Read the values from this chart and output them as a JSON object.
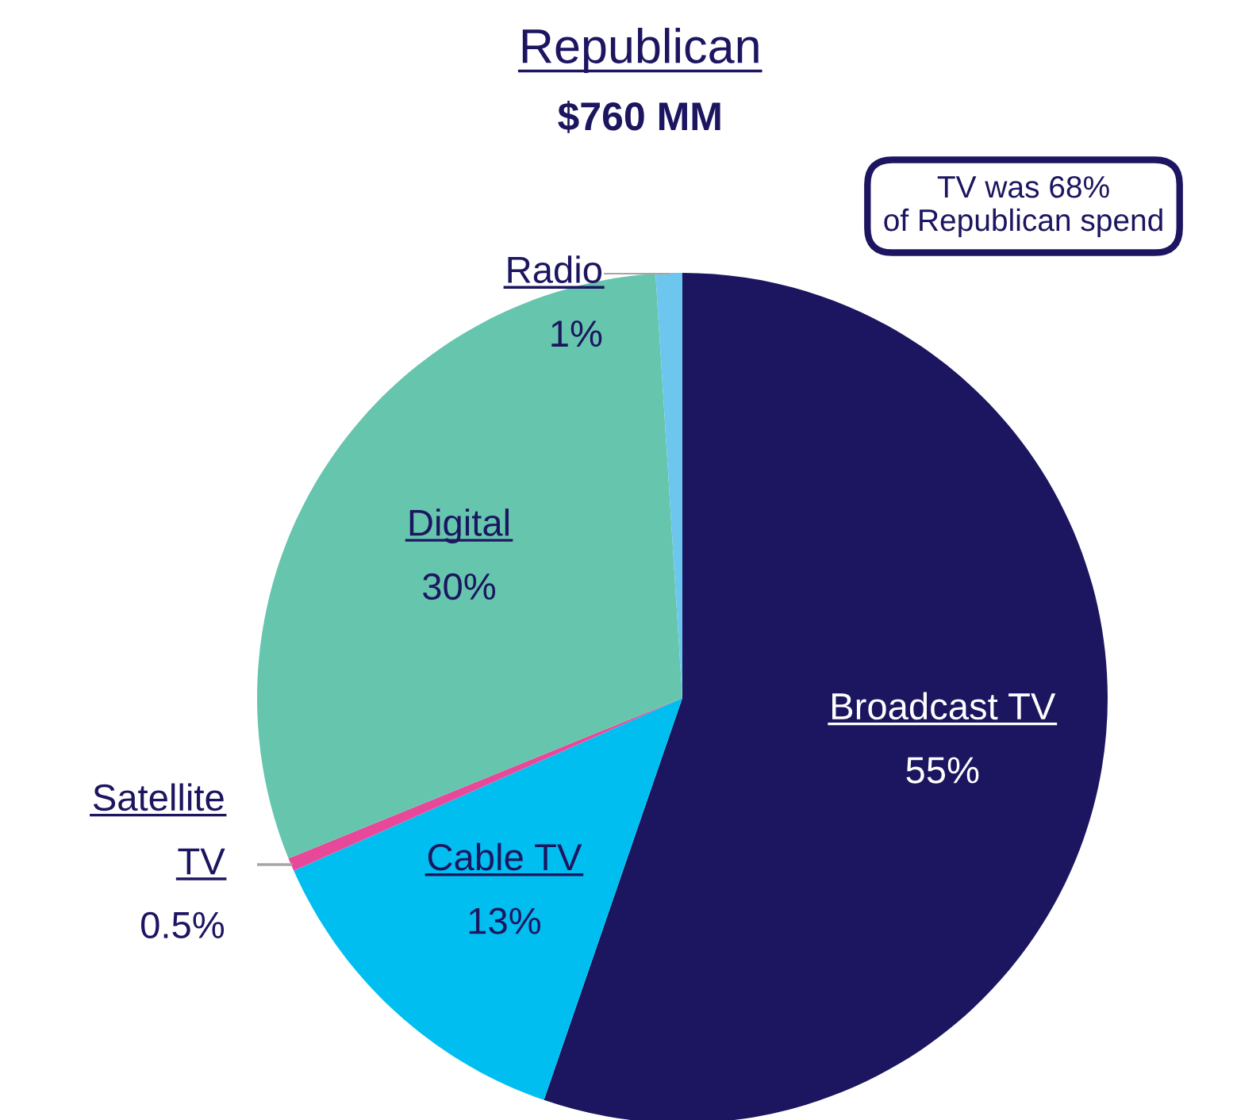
{
  "chart_data": {
    "type": "pie",
    "title": "Republican",
    "subtitle": "$760 MM",
    "categories": [
      "Broadcast TV",
      "Cable TV",
      "Satellite TV",
      "Digital",
      "Radio"
    ],
    "values": [
      55,
      13,
      0.5,
      30,
      1
    ],
    "value_labels": [
      "55%",
      "13%",
      "0.5%",
      "30%",
      "1%"
    ],
    "colors": [
      "#1c1660",
      "#00bff0",
      "#e8489a",
      "#66c5ad",
      "#6cc6ee"
    ],
    "annotations": [
      "TV was 68% of Republican spend"
    ],
    "legend": false
  }
}
